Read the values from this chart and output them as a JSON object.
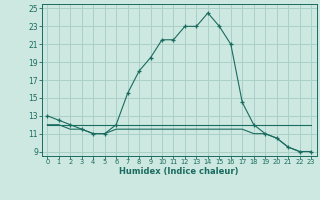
{
  "xlabel": "Humidex (Indice chaleur)",
  "background_color": "#cce8e0",
  "grid_color": "#aad0c8",
  "line_color": "#1a6b60",
  "xlim": [
    -0.5,
    23.5
  ],
  "ylim": [
    8.5,
    25.5
  ],
  "xticks": [
    0,
    1,
    2,
    3,
    4,
    5,
    6,
    7,
    8,
    9,
    10,
    11,
    12,
    13,
    14,
    15,
    16,
    17,
    18,
    19,
    20,
    21,
    22,
    23
  ],
  "yticks": [
    9,
    11,
    13,
    15,
    17,
    19,
    21,
    23,
    25
  ],
  "line1_x": [
    0,
    1,
    2,
    3,
    4,
    5,
    6,
    7,
    8,
    9,
    10,
    11,
    12,
    13,
    14,
    15,
    16,
    17,
    18,
    19,
    20,
    21,
    22,
    23
  ],
  "line1_y": [
    13.0,
    12.5,
    12.0,
    11.5,
    11.0,
    11.0,
    12.0,
    15.5,
    18.0,
    19.5,
    21.5,
    21.5,
    23.0,
    23.0,
    24.5,
    23.0,
    21.0,
    14.5,
    12.0,
    11.0,
    10.5,
    9.5,
    9.0,
    9.0
  ],
  "line2_x": [
    0,
    1,
    2,
    3,
    4,
    5,
    6,
    7,
    8,
    9,
    10,
    11,
    12,
    13,
    14,
    15,
    16,
    17,
    18,
    19,
    20,
    21,
    22,
    23
  ],
  "line2_y": [
    12.0,
    12.0,
    12.0,
    12.0,
    12.0,
    12.0,
    12.0,
    12.0,
    12.0,
    12.0,
    12.0,
    12.0,
    12.0,
    12.0,
    12.0,
    12.0,
    12.0,
    12.0,
    12.0,
    12.0,
    12.0,
    12.0,
    12.0,
    12.0
  ],
  "line3_x": [
    0,
    1,
    2,
    3,
    4,
    5,
    6,
    7,
    8,
    9,
    10,
    11,
    12,
    13,
    14,
    15,
    16,
    17,
    18,
    19,
    20,
    21,
    22,
    23
  ],
  "line3_y": [
    12.0,
    12.0,
    11.5,
    11.5,
    11.0,
    11.0,
    11.5,
    11.5,
    11.5,
    11.5,
    11.5,
    11.5,
    11.5,
    11.5,
    11.5,
    11.5,
    11.5,
    11.5,
    11.0,
    11.0,
    10.5,
    9.5,
    9.0,
    9.0
  ]
}
